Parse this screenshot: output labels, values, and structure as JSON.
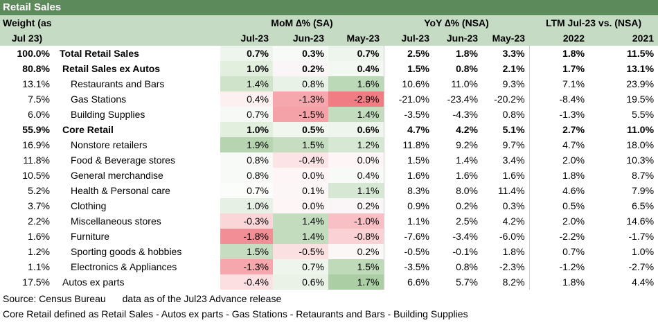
{
  "title": "Retail Sales",
  "header": {
    "weight_line1": "Weight (as of",
    "weight_line2": "Jul 23)",
    "mom_group": "MoM ∆% (SA)",
    "yoy_group": "YoY ∆% (NSA)",
    "ltm_group": "LTM Jul-23 vs. (NSA)",
    "mom_cols": [
      "Jul-23",
      "Jun-23",
      "May-23"
    ],
    "yoy_cols": [
      "Jul-23",
      "Jun-23",
      "May-23"
    ],
    "ltm_cols": [
      "2022",
      "2021"
    ]
  },
  "rows": [
    {
      "weight": "100.0%",
      "name": "Total Retail Sales",
      "bold": true,
      "level": 0,
      "mom": [
        "0.7%",
        "0.3%",
        "0.7%"
      ],
      "mom_bg": [
        "#eef5ec",
        "#f7faf6",
        "#eef5ec"
      ],
      "yoy": [
        "2.5%",
        "1.8%",
        "3.3%"
      ],
      "ltm": [
        "1.8%",
        "11.5%"
      ]
    },
    {
      "weight": "80.8%",
      "name": "Retail Sales ex Autos",
      "bold": true,
      "level": 1,
      "mom": [
        "1.0%",
        "0.2%",
        "0.4%"
      ],
      "mom_bg": [
        "#e2efdf",
        "#faf5f6",
        "#f4f8f3"
      ],
      "yoy": [
        "1.5%",
        "0.8%",
        "2.1%"
      ],
      "ltm": [
        "1.7%",
        "13.1%"
      ]
    },
    {
      "weight": "13.1%",
      "name": "Restaurants and Bars",
      "bold": false,
      "level": 2,
      "mom": [
        "1.4%",
        "0.8%",
        "1.6%"
      ],
      "mom_bg": [
        "#cfe3cb",
        "#e9f2e7",
        "#bcd9b7"
      ],
      "yoy": [
        "10.6%",
        "11.0%",
        "9.3%"
      ],
      "ltm": [
        "7.1%",
        "23.9%"
      ]
    },
    {
      "weight": "7.5%",
      "name": "Gas Stations",
      "bold": false,
      "level": 2,
      "mom": [
        "0.4%",
        "-1.3%",
        "-2.9%"
      ],
      "mom_bg": [
        "#fcf0f1",
        "#f6a7ad",
        "#f07c84"
      ],
      "yoy": [
        "-21.0%",
        "-23.4%",
        "-20.2%"
      ],
      "ltm": [
        "-8.4%",
        "19.5%"
      ]
    },
    {
      "weight": "6.0%",
      "name": "Building Supplies",
      "bold": false,
      "level": 2,
      "mom": [
        "0.7%",
        "-1.5%",
        "1.4%"
      ],
      "mom_bg": [
        "#f6f9f5",
        "#f5a1a8",
        "#c3dcbe"
      ],
      "yoy": [
        "-3.5%",
        "-4.3%",
        "0.8%"
      ],
      "ltm": [
        "-1.3%",
        "5.5%"
      ]
    },
    {
      "weight": "55.9%",
      "name": "Core Retail",
      "bold": true,
      "level": 1,
      "mom": [
        "1.0%",
        "0.5%",
        "0.6%"
      ],
      "mom_bg": [
        "#e2efdf",
        "#f1f7ef",
        "#eef5ec"
      ],
      "yoy": [
        "4.7%",
        "4.2%",
        "5.1%"
      ],
      "ltm": [
        "2.7%",
        "11.0%"
      ]
    },
    {
      "weight": "16.9%",
      "name": "Nonstore retailers",
      "bold": false,
      "level": 2,
      "mom": [
        "1.9%",
        "1.5%",
        "1.2%"
      ],
      "mom_bg": [
        "#b5d4af",
        "#c6ddc1",
        "#d6e8d3"
      ],
      "yoy": [
        "11.8%",
        "9.2%",
        "9.7%"
      ],
      "ltm": [
        "4.7%",
        "18.0%"
      ]
    },
    {
      "weight": "11.8%",
      "name": "Food & Beverage stores",
      "bold": false,
      "level": 2,
      "mom": [
        "0.8%",
        "-0.4%",
        "0.0%"
      ],
      "mom_bg": [
        "#f7faf6",
        "#fce3e5",
        "#fdf5f6"
      ],
      "yoy": [
        "1.5%",
        "1.4%",
        "3.4%"
      ],
      "ltm": [
        "2.0%",
        "10.3%"
      ]
    },
    {
      "weight": "10.5%",
      "name": "General merchandise",
      "bold": false,
      "level": 2,
      "mom": [
        "0.8%",
        "0.0%",
        "0.4%"
      ],
      "mom_bg": [
        "#f7faf6",
        "#fdf5f6",
        "#f7faf6"
      ],
      "yoy": [
        "1.6%",
        "1.6%",
        "1.6%"
      ],
      "ltm": [
        "1.8%",
        "8.7%"
      ]
    },
    {
      "weight": "5.2%",
      "name": "Health & Personal care",
      "bold": false,
      "level": 2,
      "mom": [
        "0.7%",
        "0.1%",
        "1.1%"
      ],
      "mom_bg": [
        "#fbfdfb",
        "#fdf6f7",
        "#d6e8d3"
      ],
      "yoy": [
        "8.3%",
        "8.0%",
        "11.4%"
      ],
      "ltm": [
        "4.6%",
        "7.9%"
      ]
    },
    {
      "weight": "3.7%",
      "name": "Clothing",
      "bold": false,
      "level": 2,
      "mom": [
        "1.0%",
        "0.0%",
        "0.2%"
      ],
      "mom_bg": [
        "#e6f0e4",
        "#fdf5f6",
        "#faf5f6"
      ],
      "yoy": [
        "0.9%",
        "0.2%",
        "0.3%"
      ],
      "ltm": [
        "0.5%",
        "6.5%"
      ]
    },
    {
      "weight": "2.2%",
      "name": "Miscellaneous stores",
      "bold": false,
      "level": 2,
      "mom": [
        "-0.3%",
        "1.4%",
        "-1.0%"
      ],
      "mom_bg": [
        "#fbd6d9",
        "#c3dcbe",
        "#f8c0c4"
      ],
      "yoy": [
        "1.1%",
        "2.5%",
        "4.2%"
      ],
      "ltm": [
        "2.0%",
        "14.6%"
      ]
    },
    {
      "weight": "1.6%",
      "name": "Furniture",
      "bold": false,
      "level": 2,
      "mom": [
        "-1.8%",
        "1.4%",
        "-0.8%"
      ],
      "mom_bg": [
        "#f28f96",
        "#c3dcbe",
        "#fad1d4"
      ],
      "yoy": [
        "-7.6%",
        "-3.4%",
        "-6.0%"
      ],
      "ltm": [
        "-2.2%",
        "-1.7%"
      ]
    },
    {
      "weight": "1.2%",
      "name": "Sporting goods & hobbies",
      "bold": false,
      "level": 2,
      "mom": [
        "1.5%",
        "-0.5%",
        "0.2%"
      ],
      "mom_bg": [
        "#c6ddc1",
        "#fbe0e2",
        "#fcf7f7"
      ],
      "yoy": [
        "-0.5%",
        "-0.1%",
        "1.8%"
      ],
      "ltm": [
        "0.7%",
        "1.0%"
      ]
    },
    {
      "weight": "1.1%",
      "name": "Electronics & Appliances",
      "bold": false,
      "level": 2,
      "mom": [
        "-1.3%",
        "0.7%",
        "1.5%"
      ],
      "mom_bg": [
        "#f6a7ad",
        "#eef5ec",
        "#bfdab9"
      ],
      "yoy": [
        "-3.5%",
        "0.8%",
        "-2.3%"
      ],
      "ltm": [
        "-1.2%",
        "-2.7%"
      ]
    },
    {
      "weight": "17.5%",
      "name": "Autos ex parts",
      "bold": false,
      "level": 1,
      "mom": [
        "-0.4%",
        "0.6%",
        "1.7%"
      ],
      "mom_bg": [
        "#fbdfe1",
        "#eaf2e8",
        "#acce a5"
      ],
      "yoy": [
        "6.6%",
        "5.7%",
        "8.2%"
      ],
      "ltm": [
        "1.8%",
        "4.4%"
      ]
    }
  ],
  "footnotes": {
    "source": "Source: Census Bureau",
    "data_note": "data as of the Jul23 Advance release",
    "definition": "Core Retail defined as Retail Sales - Autos ex parts - Gas Stations - Retaurants and Bars - Building Supplies"
  }
}
